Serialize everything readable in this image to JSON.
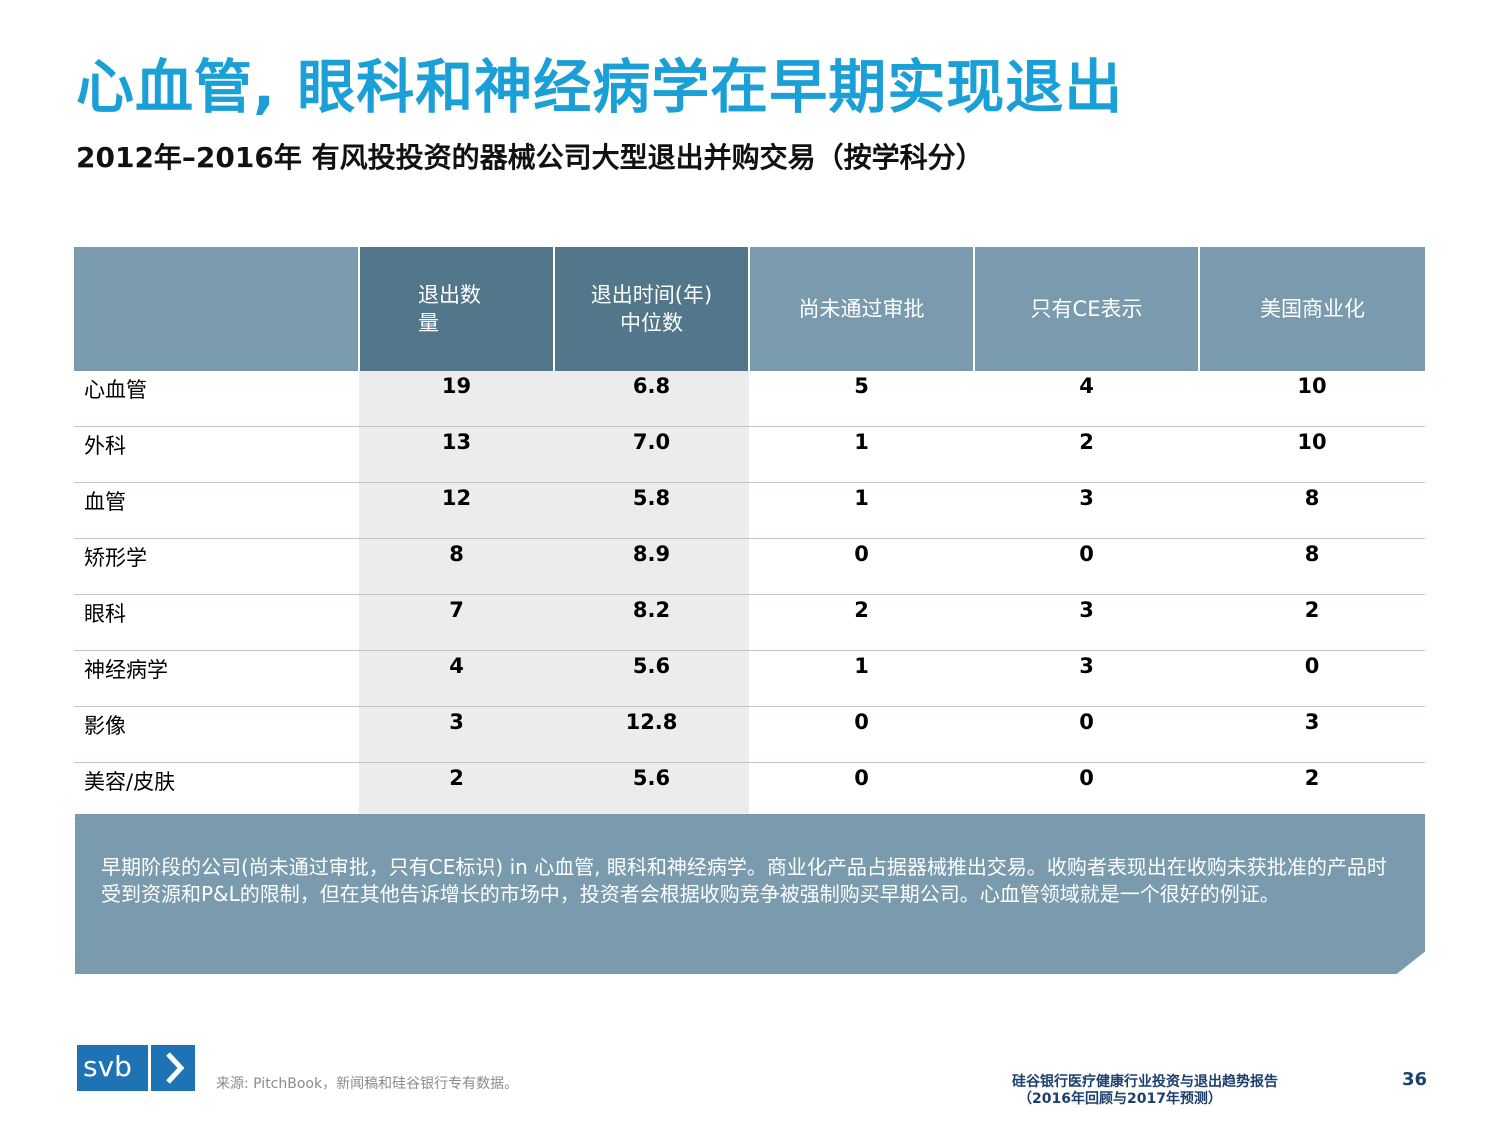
{
  "title": "心血管, 眼科和神经病学在早期实现退出",
  "subtitle": "2012年–2016年 有风投投资的器械公司大型退出并购交易（按学科分）",
  "table": {
    "headers": [
      {
        "line1": "",
        "line2": ""
      },
      {
        "line1": "退出数",
        "line2": "量"
      },
      {
        "line1": "退出时间(年)",
        "line2": "中位数"
      },
      {
        "line1": "尚未通过审批",
        "line2": ""
      },
      {
        "line1": "只有CE表示",
        "line2": ""
      },
      {
        "line1": "美国商业化",
        "line2": ""
      }
    ],
    "rows": [
      {
        "category": "心血管",
        "exits": "19",
        "median": "6.8",
        "not_approved": "5",
        "ce_only": "4",
        "us_commercial": "10"
      },
      {
        "category": "外科",
        "exits": "13",
        "median": "7.0",
        "not_approved": "1",
        "ce_only": "2",
        "us_commercial": "10"
      },
      {
        "category": "血管",
        "exits": "12",
        "median": "5.8",
        "not_approved": "1",
        "ce_only": "3",
        "us_commercial": "8"
      },
      {
        "category": "矫形学",
        "exits": "8",
        "median": "8.9",
        "not_approved": "0",
        "ce_only": "0",
        "us_commercial": "8"
      },
      {
        "category": "眼科",
        "exits": "7",
        "median": "8.2",
        "not_approved": "2",
        "ce_only": "3",
        "us_commercial": "2"
      },
      {
        "category": "神经病学",
        "exits": "4",
        "median": "5.6",
        "not_approved": "1",
        "ce_only": "3",
        "us_commercial": "0"
      },
      {
        "category": "影像",
        "exits": "3",
        "median": "12.8",
        "not_approved": "0",
        "ce_only": "0",
        "us_commercial": "3"
      },
      {
        "category": "美容/皮肤",
        "exits": "2",
        "median": "5.6",
        "not_approved": "0",
        "ce_only": "0",
        "us_commercial": "2"
      }
    ]
  },
  "note": "早期阶段的公司(尚未通过审批，只有CE标识) in 心血管, 眼科和神经病学。商业化产品占据器械推出交易。收购者表现出在收购未获批准的产品时受到资源和P&L的限制，但在其他告诉增长的市场中，投资者会根据收购竞争被强制购买早期公司。心血管领域就是一个很好的例证。",
  "footer": {
    "logo_text": "svb",
    "source": "来源: PitchBook，新闻稿和硅谷银行专有数据。",
    "report_line1": "硅谷银行医疗健康行业投资与退出趋势报告",
    "report_line2": "（2016年回顾与2017年预测）",
    "page_number": "36"
  },
  "colors": {
    "title_blue": "#1aa0d6",
    "header_dark": "#52768a",
    "header_light": "#7a9bae",
    "shade": "#ececec",
    "logo_blue": "#1e73b5",
    "footer_navy": "#1d3f6e"
  }
}
